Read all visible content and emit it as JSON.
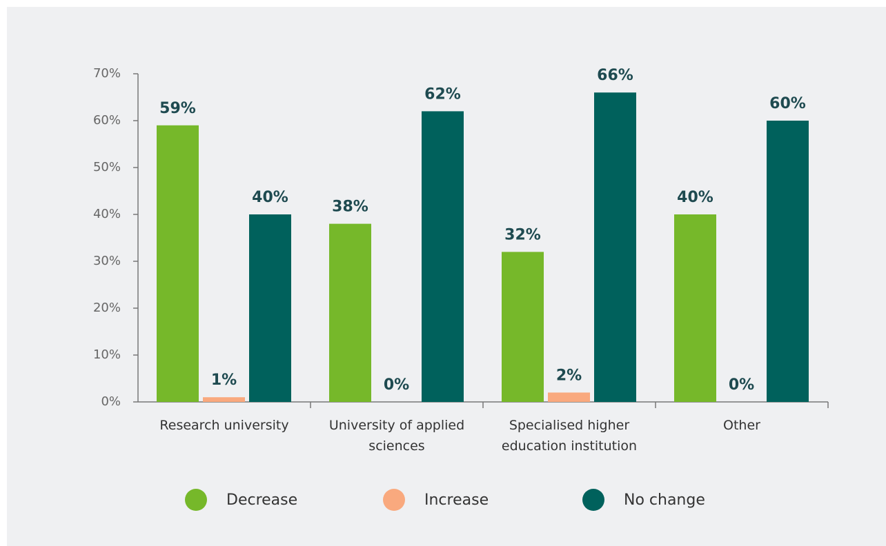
{
  "chart_data": {
    "type": "bar",
    "categories": [
      "Research university",
      "University of applied sciences",
      "Specialised higher education institution",
      "Other"
    ],
    "series": [
      {
        "name": "Decrease",
        "color": "#76b82a",
        "values": [
          59,
          38,
          32,
          40
        ],
        "value_labels": [
          "59%",
          "38%",
          "32%",
          "40%"
        ]
      },
      {
        "name": "Increase",
        "color": "#f9a97e",
        "values": [
          1,
          0,
          2,
          0
        ],
        "value_labels": [
          "1%",
          "0%",
          "2%",
          "0%"
        ]
      },
      {
        "name": "No change",
        "color": "#00615c",
        "values": [
          40,
          62,
          66,
          60
        ],
        "value_labels": [
          "40%",
          "62%",
          "66%",
          "60%"
        ]
      }
    ],
    "ylim": [
      0,
      70
    ],
    "yticks": [
      {
        "value": 0,
        "label": "0%"
      },
      {
        "value": 10,
        "label": "10%"
      },
      {
        "value": 20,
        "label": "20%"
      },
      {
        "value": 30,
        "label": "30%"
      },
      {
        "value": 40,
        "label": "40%"
      },
      {
        "value": 50,
        "label": "50%"
      },
      {
        "value": 60,
        "label": "60%"
      },
      {
        "value": 70,
        "label": "70%"
      }
    ],
    "grid": false,
    "legend": "bottom"
  }
}
